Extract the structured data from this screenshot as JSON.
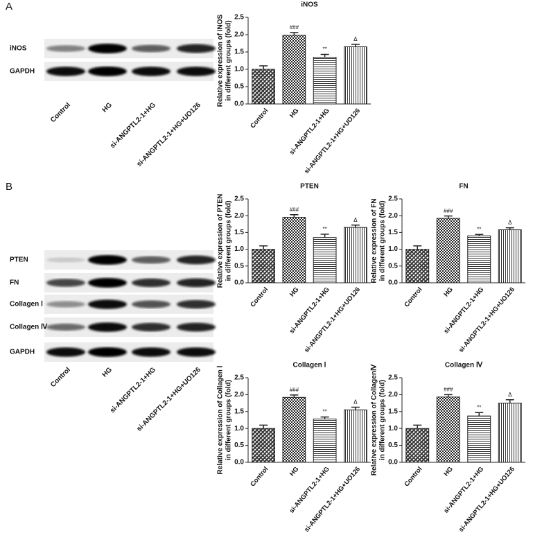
{
  "panels": [
    {
      "label": "A",
      "blot_rows": [
        "iNOS",
        "GAPDH"
      ],
      "blot_lanes": [
        "Control",
        "HG",
        "si-ANGPTL2-1+HG",
        "si-ANGPTL2-1+HG+UO126"
      ]
    },
    {
      "label": "B",
      "blot_rows": [
        "PTEN",
        "FN",
        "Collagen Ⅰ",
        "Collagen Ⅳ",
        "GAPDH"
      ],
      "blot_lanes": [
        "Control",
        "HG",
        "si-ANGPTL2-1+HG",
        "si-ANGPTL2-1+HG+UO126"
      ]
    }
  ],
  "chart_data": [
    {
      "type": "bar",
      "title": "iNOS",
      "ylabel": [
        "Relative expression of iNOS",
        "in different groups (fold)"
      ],
      "categories": [
        "Control",
        "HG",
        "si-ANGPTL2-1+HG",
        "si-ANGPTL2-1+HG+UO126"
      ],
      "values": [
        1.0,
        1.98,
        1.35,
        1.65
      ],
      "errors": [
        0.1,
        0.08,
        0.08,
        0.07
      ],
      "annotations": [
        null,
        "###",
        "**",
        "Δ"
      ],
      "ylim": [
        0,
        2.5
      ],
      "yticks": [
        {
          "value": 0,
          "label": "0.0"
        },
        {
          "value": 0.5,
          "label": "0.5"
        },
        {
          "value": 1,
          "label": "1.0"
        },
        {
          "value": 1.5,
          "label": "1.5"
        },
        {
          "value": 2,
          "label": "2.0"
        },
        {
          "value": 2.5,
          "label": "2.5"
        }
      ]
    },
    {
      "type": "bar",
      "title": "PTEN",
      "ylabel": [
        "Relative expression of PTEN",
        "in different groups (fold)"
      ],
      "categories": [
        "Control",
        "HG",
        "si-ANGPTL2-1+HG",
        "si-ANGPTL2-1+HG+UO126"
      ],
      "values": [
        1.0,
        1.95,
        1.35,
        1.65
      ],
      "errors": [
        0.1,
        0.08,
        0.1,
        0.07
      ],
      "annotations": [
        null,
        "###",
        "**",
        "Δ"
      ],
      "ylim": [
        0,
        2.5
      ],
      "yticks": [
        {
          "value": 0,
          "label": "0.0"
        },
        {
          "value": 0.5,
          "label": "0.5"
        },
        {
          "value": 1,
          "label": "1.0"
        },
        {
          "value": 1.5,
          "label": "1.5"
        },
        {
          "value": 2,
          "label": "2.0"
        },
        {
          "value": 2.5,
          "label": "2.5"
        }
      ]
    },
    {
      "type": "bar",
      "title": "FN",
      "ylabel": [
        "Relative expression of FN",
        "in different groups (fold)"
      ],
      "categories": [
        "Control",
        "HG",
        "si-ANGPTL2-1+HG",
        "si-ANGPTL2-1+HG+UO126"
      ],
      "values": [
        1.0,
        1.92,
        1.4,
        1.58
      ],
      "errors": [
        0.1,
        0.07,
        0.04,
        0.06
      ],
      "annotations": [
        null,
        "###",
        "**",
        "Δ"
      ],
      "ylim": [
        0,
        2.5
      ],
      "yticks": [
        {
          "value": 0,
          "label": "0.0"
        },
        {
          "value": 0.5,
          "label": "0.5"
        },
        {
          "value": 1,
          "label": "1.0"
        },
        {
          "value": 1.5,
          "label": "1.5"
        },
        {
          "value": 2,
          "label": "2.0"
        },
        {
          "value": 2.5,
          "label": "2.5"
        }
      ]
    },
    {
      "type": "bar",
      "title": "Collagen Ⅰ",
      "ylabel": [
        "Relative expression of Collagen Ⅰ",
        "in different groups (fold)"
      ],
      "categories": [
        "Control",
        "HG",
        "si-ANGPTL2-1+HG",
        "si-ANGPTL2-1+HG+UO126"
      ],
      "values": [
        1.0,
        1.92,
        1.28,
        1.55
      ],
      "errors": [
        0.1,
        0.07,
        0.06,
        0.08
      ],
      "annotations": [
        null,
        "###",
        "**",
        "Δ"
      ],
      "ylim": [
        0,
        2.5
      ],
      "yticks": [
        {
          "value": 0,
          "label": "0.0"
        },
        {
          "value": 0.5,
          "label": "0.5"
        },
        {
          "value": 1,
          "label": "1.0"
        },
        {
          "value": 1.5,
          "label": "1.5"
        },
        {
          "value": 2,
          "label": "2.0"
        },
        {
          "value": 2.5,
          "label": "2.5"
        }
      ]
    },
    {
      "type": "bar",
      "title": "Collagen Ⅳ",
      "ylabel": [
        "Relative expression of CollagenⅣ",
        "in different groups (fold)"
      ],
      "categories": [
        "Control",
        "HG",
        "si-ANGPTL2-1+HG",
        "si-ANGPTL2-1+HG+UO126"
      ],
      "values": [
        1.0,
        1.93,
        1.37,
        1.75
      ],
      "errors": [
        0.1,
        0.07,
        0.1,
        0.1
      ],
      "annotations": [
        null,
        "###",
        "**",
        "Δ"
      ],
      "ylim": [
        0,
        2.5
      ],
      "yticks": [
        {
          "value": 0,
          "label": "0.0"
        },
        {
          "value": 0.5,
          "label": "0.5"
        },
        {
          "value": 1,
          "label": "1.0"
        },
        {
          "value": 1.5,
          "label": "1.5"
        },
        {
          "value": 2,
          "label": "2.0"
        },
        {
          "value": 2.5,
          "label": "2.5"
        }
      ]
    }
  ]
}
